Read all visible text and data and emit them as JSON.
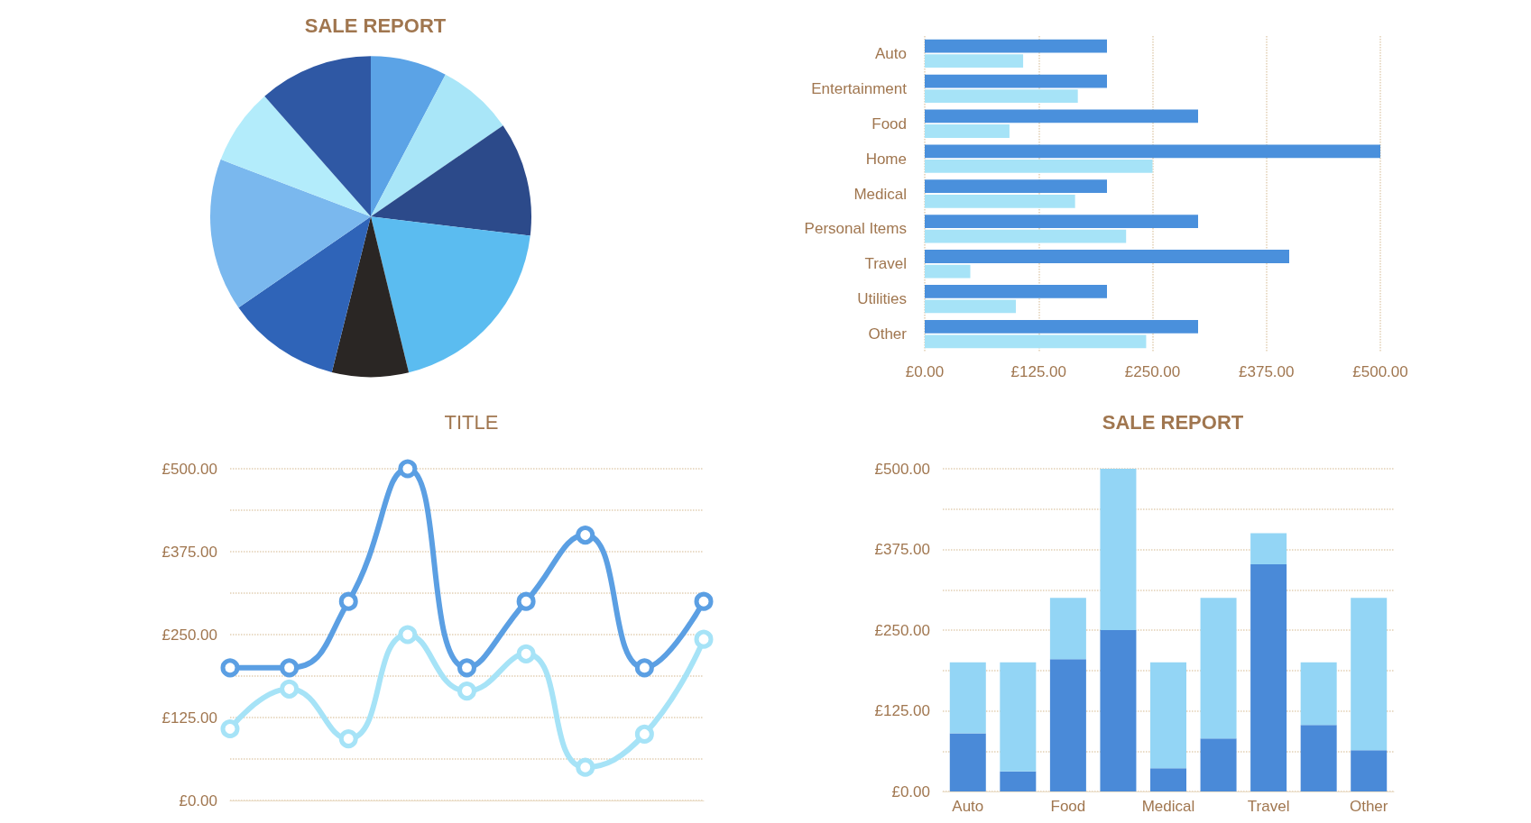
{
  "chart_data": [
    {
      "type": "pie",
      "title": "SALE REPORT",
      "categories": [
        null,
        null,
        null,
        null,
        null,
        null,
        null,
        null,
        null
      ],
      "values": [
        7.7,
        7.7,
        11.5,
        19.3,
        7.7,
        11.5,
        15.4,
        7.7,
        11.5
      ],
      "colors": [
        "#5ba3e6",
        "#a9e6f8",
        "#2c4a8a",
        "#5bbcf0",
        "#2a2624",
        "#2f64b8",
        "#7ab8ee",
        "#b3ecfb",
        "#2f58a4"
      ]
    },
    {
      "type": "bar",
      "orientation": "horizontal",
      "categories": [
        "Auto",
        "Entertainment",
        "Food",
        "Home",
        "Medical",
        "Personal Items",
        "Travel",
        "Utilities",
        "Other"
      ],
      "series": [
        {
          "color": "#4a90dc",
          "values": [
            200,
            200,
            300,
            500,
            200,
            300,
            400,
            200,
            300
          ]
        },
        {
          "color": "#a6e3f7",
          "values": [
            108,
            168,
            93,
            250,
            165,
            221,
            50,
            100,
            243
          ]
        }
      ],
      "xlim": [
        0,
        500
      ],
      "xticks": [
        {
          "value": 0,
          "label": "£0.00"
        },
        {
          "value": 125,
          "label": "£125.00"
        },
        {
          "value": 250,
          "label": "£250.00"
        },
        {
          "value": 375,
          "label": "£375.00"
        },
        {
          "value": 500,
          "label": "£500.00"
        }
      ],
      "grid": "x"
    },
    {
      "type": "line",
      "title": "TITLE",
      "categories": [
        null,
        null,
        null,
        null,
        null,
        null,
        null,
        null,
        null
      ],
      "series": [
        {
          "color": "#5b9fe3",
          "values": [
            200,
            200,
            300,
            500,
            200,
            300,
            400,
            200,
            300
          ]
        },
        {
          "color": "#a6e3f7",
          "values": [
            108,
            168,
            93,
            250,
            165,
            221,
            50,
            100,
            243
          ]
        }
      ],
      "ylim": [
        0,
        500
      ],
      "yticks": [
        {
          "value": 0,
          "label": "£0.00"
        },
        {
          "value": 62.5,
          "label": null
        },
        {
          "value": 125,
          "label": "£125.00"
        },
        {
          "value": 187.5,
          "label": null
        },
        {
          "value": 250,
          "label": "£250.00"
        },
        {
          "value": 312.5,
          "label": null
        },
        {
          "value": 375,
          "label": "£375.00"
        },
        {
          "value": 437.5,
          "label": null
        },
        {
          "value": 500,
          "label": "£500.00"
        }
      ],
      "grid": "y",
      "marker": "circle",
      "line_style": "solid"
    },
    {
      "type": "bar",
      "title": "SALE REPORT",
      "stacked": true,
      "categories": [
        "Auto",
        null,
        "Food",
        null,
        "Medical",
        null,
        "Travel",
        null,
        "Other"
      ],
      "series": [
        {
          "color": "#4a8ad8",
          "values": [
            90,
            31,
            205,
            250,
            36,
            82,
            352,
            103,
            64
          ]
        },
        {
          "color": "#93d5f5",
          "values": [
            110,
            169,
            95,
            250,
            164,
            218,
            48,
            97,
            236
          ]
        }
      ],
      "ylim": [
        0,
        500
      ],
      "yticks": [
        {
          "value": 0,
          "label": "£0.00"
        },
        {
          "value": 62.5,
          "label": null
        },
        {
          "value": 125,
          "label": "£125.00"
        },
        {
          "value": 187.5,
          "label": null
        },
        {
          "value": 250,
          "label": "£250.00"
        },
        {
          "value": 312.5,
          "label": null
        },
        {
          "value": 375,
          "label": "£375.00"
        },
        {
          "value": 437.5,
          "label": null
        },
        {
          "value": 500,
          "label": "£500.00"
        }
      ],
      "grid": "y"
    }
  ]
}
